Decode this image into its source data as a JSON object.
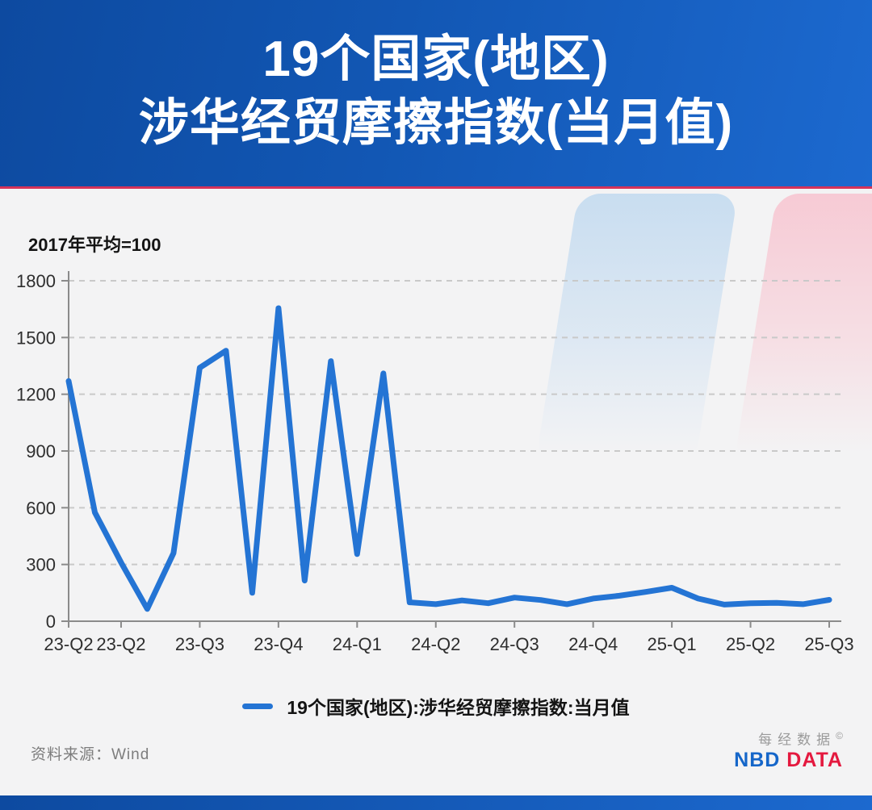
{
  "header": {
    "title_line1": "19个国家(地区)",
    "title_line2": "涉华经贸摩擦指数(当月值)"
  },
  "chart_data": {
    "type": "line",
    "title": "19个国家(地区) 涉华经贸摩擦指数(当月值)",
    "note": "2017年平均=100",
    "ylim": [
      0,
      1800
    ],
    "yticks": [
      0,
      300,
      600,
      900,
      1200,
      1500,
      1800
    ],
    "grid": "dashed-horizontal",
    "x_tick_labels": [
      "23-Q2",
      "23-Q2",
      "23-Q3",
      "23-Q4",
      "24-Q1",
      "24-Q2",
      "24-Q3",
      "24-Q4",
      "25-Q1",
      "25-Q2",
      "25-Q3"
    ],
    "x_tick_point_index": [
      0,
      2,
      5,
      8,
      11,
      14,
      17,
      20,
      23,
      26,
      29
    ],
    "series": [
      {
        "name": "19个国家(地区):涉华经贸摩擦指数:当月值",
        "color": "#2474d4",
        "values": [
          1270,
          575,
          310,
          65,
          360,
          1340,
          1430,
          150,
          1655,
          215,
          1375,
          355,
          1310,
          100,
          90,
          110,
          95,
          125,
          112,
          90,
          120,
          135,
          155,
          177,
          120,
          88,
          95,
          97,
          90,
          113
        ]
      }
    ],
    "legend_position": "bottom"
  },
  "legend": {
    "label": "19个国家(地区):涉华经贸摩擦指数:当月值"
  },
  "footer": {
    "source": "资料来源：Wind",
    "logo_cn": "每经数据",
    "logo_mark": "©",
    "logo_en_blue": "NBD",
    "logo_en_red": "DATA"
  },
  "colors": {
    "header_gradient_start": "#0d4aa0",
    "header_gradient_end": "#1c69cf",
    "header_accent_line": "#d5335a",
    "background": "#f3f3f4",
    "line": "#2474d4",
    "gridline": "#c9c9c9",
    "axis": "#8b8b8b",
    "tick_label": "#2e2e2e",
    "deco_blue": "#c6dcf0",
    "deco_pink": "#f7c8d3",
    "logo_blue": "#1566c9",
    "logo_red": "#e4193f"
  }
}
